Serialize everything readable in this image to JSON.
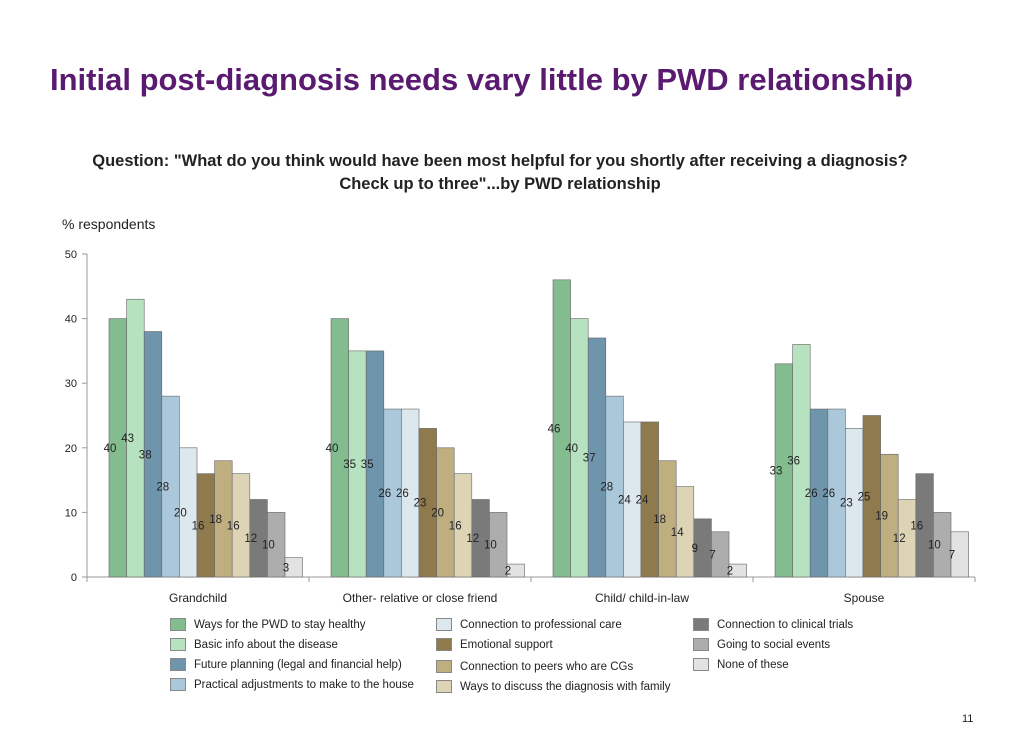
{
  "title": "Initial post-diagnosis needs vary little by PWD relationship",
  "question": "Question: \"What do you think would have been most helpful for you shortly after receiving a diagnosis? Check up to three\"...by PWD relationship",
  "page_number": "11",
  "chart_data": {
    "type": "bar",
    "ylabel": "% respondents",
    "xlabel": "",
    "ylim": [
      0,
      50
    ],
    "yticks": [
      "0",
      "10",
      "20",
      "30",
      "40",
      "50"
    ],
    "categories": [
      "Grandchild",
      "Other- relative or close friend",
      "Child/ child-in-law",
      "Spouse"
    ],
    "series": [
      {
        "name": "Ways for the PWD to stay healthy",
        "color": "#82bc8f",
        "values": [
          40,
          40,
          46,
          33
        ]
      },
      {
        "name": "Basic info about the disease",
        "color": "#b7e2bf",
        "values": [
          43,
          35,
          40,
          36
        ]
      },
      {
        "name": "Future planning (legal and financial help)",
        "color": "#6f95ac",
        "values": [
          38,
          35,
          37,
          26
        ]
      },
      {
        "name": "Practical adjustments to make to the house",
        "color": "#aac8da",
        "values": [
          28,
          26,
          28,
          26
        ]
      },
      {
        "name": "Connection to professional care",
        "color": "#dde8ee",
        "values": [
          20,
          26,
          24,
          23
        ]
      },
      {
        "name": "Emotional support",
        "color": "#8f7a4e",
        "values": [
          16,
          23,
          24,
          25
        ]
      },
      {
        "name": "Connection to peers who are CGs",
        "color": "#bfae7f",
        "values": [
          18,
          20,
          18,
          19
        ]
      },
      {
        "name": "Ways to discuss the diagnosis with family",
        "color": "#ddd4b6",
        "values": [
          16,
          16,
          14,
          12
        ]
      },
      {
        "name": "Connection to clinical trials",
        "color": "#7a7a7a",
        "values": [
          12,
          12,
          9,
          16
        ]
      },
      {
        "name": "Going to social events",
        "color": "#adadad",
        "values": [
          10,
          10,
          7,
          10
        ]
      },
      {
        "name": "None of these",
        "color": "#e2e2e2",
        "values": [
          3,
          2,
          2,
          7
        ]
      }
    ]
  }
}
